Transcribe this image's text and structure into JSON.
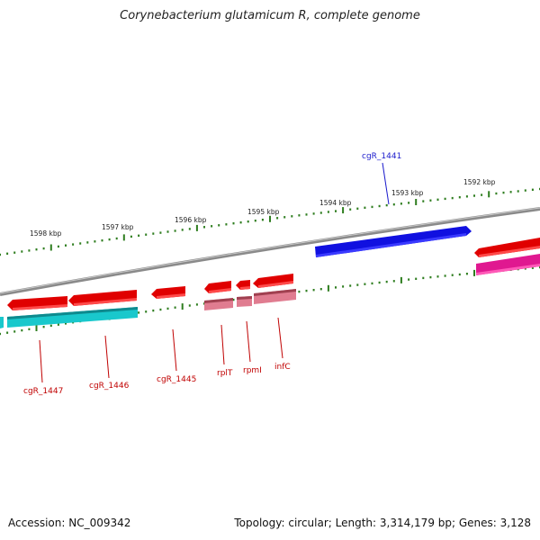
{
  "title": "Corynebacterium glutamicum R, complete genome",
  "footer": {
    "accession": "Accession: NC_009342",
    "topology": "Topology: circular; Length: 3,314,179 bp; Genes: 3,128"
  },
  "colors": {
    "backbone": "#7f7f7f",
    "tick": "#2e7d1f",
    "forward_gene": "#e00000",
    "reverse_gene": "#1010e0",
    "forward_cds_track": "#19c8cc",
    "pseudo_pink": "#e0789a",
    "magenta": "#e01890",
    "label_red": "#c00000",
    "label_blue": "#1a1acc"
  },
  "kbp_labels": [
    "1598 kbp",
    "1597 kbp",
    "1596 kbp",
    "1595 kbp",
    "1594 kbp",
    "1593 kbp",
    "1592 kbp"
  ],
  "gene_labels": [
    {
      "text": "cgR_1441",
      "color": "#1a1acc"
    },
    {
      "text": "cgR_1447",
      "color": "#c00000"
    },
    {
      "text": "cgR_1446",
      "color": "#c00000"
    },
    {
      "text": "cgR_1445",
      "color": "#c00000"
    },
    {
      "text": "rplT",
      "color": "#c00000"
    },
    {
      "text": "rpmI",
      "color": "#c00000"
    },
    {
      "text": "infC",
      "color": "#c00000"
    }
  ]
}
